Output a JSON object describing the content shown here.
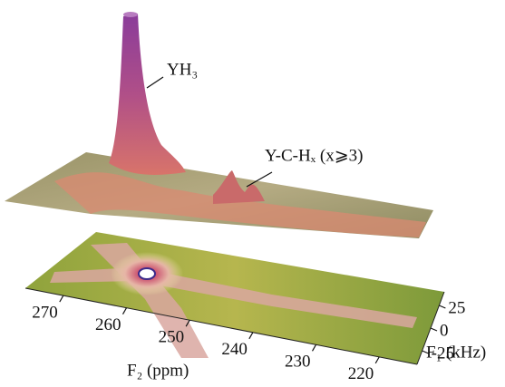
{
  "figure": {
    "annotations": [
      "YH₃",
      "Y-C-Hₓ (x⩾3)"
    ],
    "f2_axis": {
      "label": "F₂ (ppm)",
      "lim": [
        276,
        214
      ],
      "ticks": [
        270,
        260,
        250,
        240,
        230,
        220
      ]
    },
    "f1_axis": {
      "label": "F₁ (kHz)",
      "lim": [
        40,
        -40
      ],
      "ticks": [
        25,
        0,
        -25
      ]
    }
  }
}
